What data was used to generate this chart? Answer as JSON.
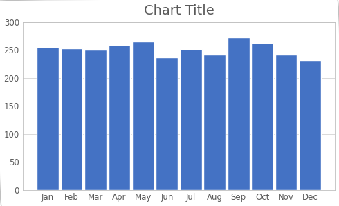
{
  "title": "Chart Title",
  "categories": [
    "Jan",
    "Feb",
    "Mar",
    "Apr",
    "May",
    "Jun",
    "Jul",
    "Aug",
    "Sep",
    "Oct",
    "Nov",
    "Dec"
  ],
  "values": [
    255,
    253,
    250,
    259,
    265,
    236,
    252,
    241,
    272,
    263,
    241,
    232
  ],
  "bar_color": "#4472C4",
  "bar_edge_color": "#FFFFFF",
  "bar_edge_width": 1.0,
  "ylim": [
    0,
    300
  ],
  "yticks": [
    0,
    50,
    100,
    150,
    200,
    250,
    300
  ],
  "plot_bg_color": "#FFFFFF",
  "fig_bg_color": "#FFFFFF",
  "grid_color": "#D9D9D9",
  "title_fontsize": 14,
  "tick_fontsize": 8.5,
  "title_color": "#595959",
  "tick_color": "#595959",
  "border_color": "#BFBFBF",
  "bar_width": 0.92
}
